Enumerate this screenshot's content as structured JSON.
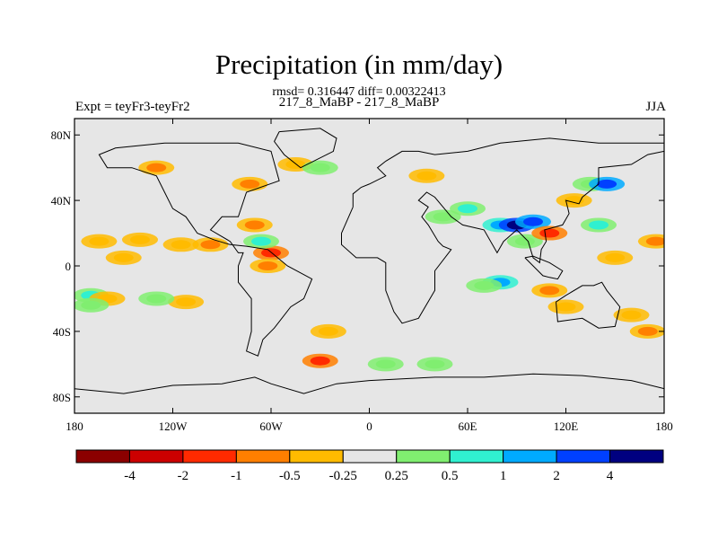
{
  "chart_data": {
    "type": "heatmap",
    "title": "Precipitation (in mm/day)",
    "subtitle": "rmsd= 0.316447 diff= 0.00322413",
    "center_string": "217_8_MaBP - 217_8_MaBP",
    "left_string": "Expt = teyFr3-teyFr2",
    "right_string": "JJA",
    "x_ticks": [
      {
        "lon": -180,
        "label": "180"
      },
      {
        "lon": -120,
        "label": "120W"
      },
      {
        "lon": -60,
        "label": "60W"
      },
      {
        "lon": 0,
        "label": "0"
      },
      {
        "lon": 60,
        "label": "60E"
      },
      {
        "lon": 120,
        "label": "120E"
      },
      {
        "lon": 180,
        "label": "180"
      }
    ],
    "y_ticks": [
      {
        "lat": 80,
        "label": "80N"
      },
      {
        "lat": 40,
        "label": "40N"
      },
      {
        "lat": 0,
        "label": "0"
      },
      {
        "lat": -40,
        "label": "40S"
      },
      {
        "lat": -80,
        "label": "80S"
      }
    ],
    "xlim": [
      -180,
      180
    ],
    "ylim": [
      -90,
      90
    ],
    "colorbar": {
      "levels": [
        -4,
        -2,
        -1,
        -0.5,
        -0.25,
        0.25,
        0.5,
        1,
        2,
        4
      ],
      "labels": [
        "-4",
        "-2",
        "-1",
        "-0.5",
        "-0.25",
        "0.25",
        "0.5",
        "1",
        "2",
        "4"
      ],
      "colors": [
        "#8b0000",
        "#cc0000",
        "#ff2a00",
        "#ff7f00",
        "#ffbb00",
        "#e6e6e6",
        "#80ee70",
        "#30f0d0",
        "#00aaff",
        "#0040ff",
        "#000080"
      ]
    },
    "anomalies": [
      {
        "lon": -165,
        "lat": 15,
        "category": 4
      },
      {
        "lon": -140,
        "lat": 16,
        "category": 4
      },
      {
        "lon": -115,
        "lat": 13,
        "category": 4
      },
      {
        "lon": -97,
        "lat": 13,
        "category": 3
      },
      {
        "lon": -150,
        "lat": 5,
        "category": 4
      },
      {
        "lon": -170,
        "lat": -18,
        "category": 7
      },
      {
        "lon": -160,
        "lat": -20,
        "category": 4
      },
      {
        "lon": -112,
        "lat": -22,
        "category": 4
      },
      {
        "lon": -130,
        "lat": -20,
        "category": 6
      },
      {
        "lon": -170,
        "lat": -24,
        "category": 6
      },
      {
        "lon": -60,
        "lat": 8,
        "category": 2
      },
      {
        "lon": -70,
        "lat": 25,
        "category": 3
      },
      {
        "lon": -66,
        "lat": 15,
        "category": 7
      },
      {
        "lon": -62,
        "lat": 0,
        "category": 3
      },
      {
        "lon": -130,
        "lat": 60,
        "category": 3
      },
      {
        "lon": -73,
        "lat": 50,
        "category": 3
      },
      {
        "lon": -45,
        "lat": 62,
        "category": 4
      },
      {
        "lon": -30,
        "lat": 60,
        "category": 6
      },
      {
        "lon": -25,
        "lat": -40,
        "category": 4
      },
      {
        "lon": -30,
        "lat": -58,
        "category": 2
      },
      {
        "lon": 10,
        "lat": -60,
        "category": 6
      },
      {
        "lon": 40,
        "lat": -60,
        "category": 6
      },
      {
        "lon": 35,
        "lat": 55,
        "category": 4
      },
      {
        "lon": 60,
        "lat": 35,
        "category": 7
      },
      {
        "lon": 45,
        "lat": 30,
        "category": 6
      },
      {
        "lon": 80,
        "lat": 25,
        "category": 8
      },
      {
        "lon": 90,
        "lat": 25,
        "category": 10
      },
      {
        "lon": 100,
        "lat": 27,
        "category": 9
      },
      {
        "lon": 95,
        "lat": 15,
        "category": 6
      },
      {
        "lon": 110,
        "lat": 20,
        "category": 2
      },
      {
        "lon": 135,
        "lat": 50,
        "category": 6
      },
      {
        "lon": 145,
        "lat": 50,
        "category": 9
      },
      {
        "lon": 125,
        "lat": 40,
        "category": 4
      },
      {
        "lon": 140,
        "lat": 25,
        "category": 7
      },
      {
        "lon": 150,
        "lat": 5,
        "category": 4
      },
      {
        "lon": 80,
        "lat": -10,
        "category": 8
      },
      {
        "lon": 70,
        "lat": -12,
        "category": 6
      },
      {
        "lon": 110,
        "lat": -15,
        "category": 3
      },
      {
        "lon": 120,
        "lat": -25,
        "category": 4
      },
      {
        "lon": 160,
        "lat": -30,
        "category": 4
      },
      {
        "lon": 170,
        "lat": -40,
        "category": 3
      },
      {
        "lon": 175,
        "lat": 15,
        "category": 3
      }
    ]
  }
}
